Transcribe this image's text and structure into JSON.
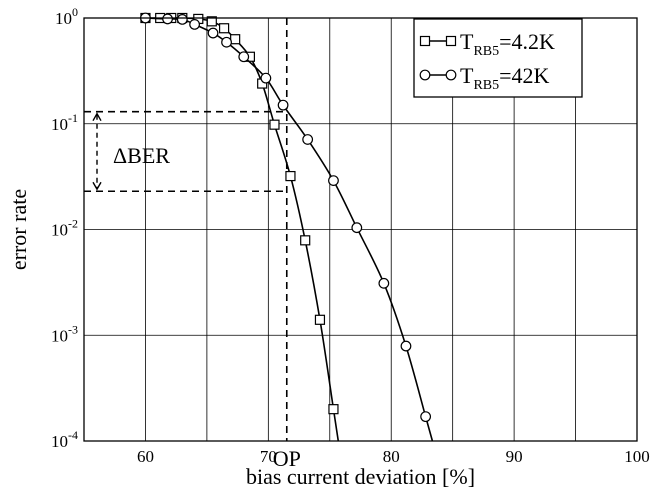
{
  "chart_data": {
    "type": "line",
    "title": "",
    "xlabel": "bias current deviation [%]",
    "ylabel": "error rate",
    "xlim": [
      55,
      100
    ],
    "ylim": [
      0.0001,
      1
    ],
    "yscale": "log",
    "grid": true,
    "legend_position": "top-right",
    "x_ticks": [
      60,
      70,
      80,
      90,
      100
    ],
    "y_ticks": [
      {
        "value": 0.0001,
        "base": "10",
        "exp": "-4"
      },
      {
        "value": 0.001,
        "base": "10",
        "exp": "-3"
      },
      {
        "value": 0.01,
        "base": "10",
        "exp": "-2"
      },
      {
        "value": 0.1,
        "base": "10",
        "exp": "-1"
      },
      {
        "value": 1,
        "base": "10",
        "exp": "0"
      }
    ],
    "series": [
      {
        "name_main": "T",
        "name_sub": "RB5",
        "name_suffix": "=4.2K",
        "marker": "square",
        "x": [
          60.0,
          61.2,
          62.1,
          63.0,
          64.3,
          65.4,
          66.4,
          67.3,
          68.5,
          69.5,
          70.5,
          71.8,
          73.0,
          74.2,
          75.3
        ],
        "y": [
          1.0,
          1.0,
          1.0,
          1.0,
          0.98,
          0.93,
          0.8,
          0.63,
          0.43,
          0.24,
          0.098,
          0.032,
          0.0079,
          0.0014,
          0.0002
        ]
      },
      {
        "name_main": "T",
        "name_sub": "RB5",
        "name_suffix": "=42K",
        "marker": "circle",
        "x": [
          60.0,
          61.8,
          63.0,
          64.0,
          65.5,
          66.6,
          68.0,
          69.8,
          71.2,
          73.2,
          75.3,
          77.2,
          79.4,
          81.2,
          82.8
        ],
        "y": [
          1.0,
          0.98,
          0.97,
          0.87,
          0.72,
          0.59,
          0.43,
          0.27,
          0.15,
          0.071,
          0.029,
          0.0104,
          0.0031,
          0.00079,
          0.00017
        ]
      }
    ],
    "annotations": {
      "op_label": "OP",
      "op_x": 71.5,
      "delta_label": "ΔBER",
      "delta_y_top": 0.13,
      "delta_y_bottom": 0.023
    }
  }
}
